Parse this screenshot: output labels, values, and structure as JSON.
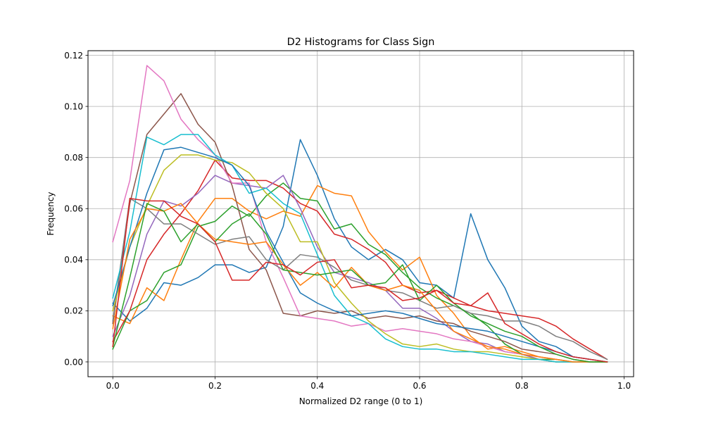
{
  "chart_data": {
    "type": "line",
    "title": "D2 Histograms for Class Sign",
    "xlabel": "Normalized D2 range (0 to 1)",
    "ylabel": "Frequency",
    "xlim": [
      -0.0485,
      1.0185
    ],
    "ylim": [
      -0.0058,
      0.1218
    ],
    "xticks": [
      0.0,
      0.2,
      0.4,
      0.6,
      0.8,
      1.0
    ],
    "xtick_labels": [
      "0.0",
      "0.2",
      "0.4",
      "0.6",
      "0.8",
      "1.0"
    ],
    "yticks": [
      0.0,
      0.02,
      0.04,
      0.06,
      0.08,
      0.1,
      0.12
    ],
    "ytick_labels": [
      "0.00",
      "0.02",
      "0.04",
      "0.06",
      "0.08",
      "0.10",
      "0.12"
    ],
    "grid": true,
    "x": [
      0.0,
      0.0333,
      0.0667,
      0.1,
      0.1333,
      0.1667,
      0.2,
      0.2333,
      0.2667,
      0.3,
      0.3333,
      0.3667,
      0.4,
      0.4333,
      0.4667,
      0.5,
      0.5333,
      0.5667,
      0.6,
      0.6333,
      0.6667,
      0.7,
      0.7333,
      0.7667,
      0.8,
      0.8333,
      0.8667,
      0.9,
      0.9333,
      0.9667
    ],
    "series": [
      {
        "color": "#1f77b4",
        "values": [
          0.023,
          0.016,
          0.021,
          0.031,
          0.03,
          0.033,
          0.038,
          0.038,
          0.035,
          0.037,
          0.053,
          0.087,
          0.073,
          0.056,
          0.045,
          0.04,
          0.044,
          0.04,
          0.031,
          0.03,
          0.025,
          0.058,
          0.04,
          0.029,
          0.014,
          0.008,
          0.006,
          0.002,
          0.001,
          0.0
        ]
      },
      {
        "color": "#ff7f0e",
        "values": [
          0.018,
          0.015,
          0.029,
          0.024,
          0.04,
          0.055,
          0.064,
          0.064,
          0.059,
          0.056,
          0.059,
          0.057,
          0.069,
          0.066,
          0.065,
          0.051,
          0.043,
          0.036,
          0.041,
          0.026,
          0.019,
          0.01,
          0.005,
          0.006,
          0.004,
          0.002,
          0.001,
          0.0,
          0.0,
          0.0
        ]
      },
      {
        "color": "#2ca02c",
        "values": [
          0.005,
          0.02,
          0.024,
          0.035,
          0.038,
          0.053,
          0.055,
          0.061,
          0.057,
          0.065,
          0.07,
          0.064,
          0.063,
          0.052,
          0.054,
          0.046,
          0.042,
          0.035,
          0.029,
          0.025,
          0.022,
          0.019,
          0.014,
          0.007,
          0.003,
          0.001,
          0.001,
          0.0,
          0.0,
          0.0
        ]
      },
      {
        "color": "#d62728",
        "values": [
          0.008,
          0.02,
          0.04,
          0.05,
          0.058,
          0.067,
          0.079,
          0.072,
          0.071,
          0.071,
          0.068,
          0.062,
          0.059,
          0.05,
          0.048,
          0.044,
          0.039,
          0.03,
          0.027,
          0.028,
          0.025,
          0.022,
          0.02,
          0.019,
          0.018,
          0.017,
          0.014,
          0.009,
          0.005,
          0.001
        ]
      },
      {
        "color": "#9467bd",
        "values": [
          0.01,
          0.026,
          0.05,
          0.063,
          0.061,
          0.066,
          0.073,
          0.07,
          0.069,
          0.068,
          0.073,
          0.06,
          0.045,
          0.035,
          0.033,
          0.031,
          0.028,
          0.021,
          0.021,
          0.017,
          0.012,
          0.008,
          0.007,
          0.004,
          0.003,
          0.001,
          0.0,
          0.0,
          0.0,
          0.0
        ]
      },
      {
        "color": "#8c564b",
        "values": [
          0.015,
          0.062,
          0.089,
          0.097,
          0.105,
          0.093,
          0.086,
          0.069,
          0.044,
          0.036,
          0.019,
          0.018,
          0.02,
          0.019,
          0.02,
          0.017,
          0.018,
          0.017,
          0.018,
          0.016,
          0.015,
          0.012,
          0.01,
          0.008,
          0.005,
          0.004,
          0.003,
          0.001,
          0.0,
          0.0
        ]
      },
      {
        "color": "#e377c2",
        "values": [
          0.047,
          0.071,
          0.116,
          0.11,
          0.095,
          0.087,
          0.081,
          0.07,
          0.07,
          0.047,
          0.033,
          0.018,
          0.017,
          0.016,
          0.014,
          0.015,
          0.012,
          0.013,
          0.012,
          0.011,
          0.009,
          0.008,
          0.006,
          0.004,
          0.003,
          0.002,
          0.001,
          0.0,
          0.0,
          0.0
        ]
      },
      {
        "color": "#7f7f7f",
        "values": [
          0.016,
          0.064,
          0.06,
          0.054,
          0.054,
          0.05,
          0.046,
          0.048,
          0.049,
          0.04,
          0.036,
          0.042,
          0.041,
          0.037,
          0.032,
          0.03,
          0.028,
          0.027,
          0.024,
          0.021,
          0.022,
          0.019,
          0.018,
          0.016,
          0.016,
          0.014,
          0.01,
          0.008,
          0.004,
          0.001
        ]
      },
      {
        "color": "#bcbd22",
        "values": [
          0.02,
          0.045,
          0.061,
          0.075,
          0.081,
          0.081,
          0.079,
          0.078,
          0.074,
          0.066,
          0.06,
          0.047,
          0.047,
          0.031,
          0.023,
          0.016,
          0.011,
          0.007,
          0.006,
          0.007,
          0.005,
          0.004,
          0.004,
          0.003,
          0.002,
          0.001,
          0.0,
          0.0,
          0.0,
          0.0
        ]
      },
      {
        "color": "#17becf",
        "values": [
          0.025,
          0.051,
          0.088,
          0.085,
          0.089,
          0.089,
          0.081,
          0.077,
          0.066,
          0.068,
          0.062,
          0.058,
          0.042,
          0.026,
          0.018,
          0.015,
          0.009,
          0.006,
          0.005,
          0.005,
          0.004,
          0.004,
          0.003,
          0.002,
          0.001,
          0.001,
          0.0,
          0.0,
          0.0,
          0.0
        ]
      },
      {
        "color": "#1f77b4",
        "values": [
          0.022,
          0.045,
          0.066,
          0.083,
          0.084,
          0.082,
          0.08,
          0.077,
          0.069,
          0.051,
          0.039,
          0.027,
          0.023,
          0.02,
          0.018,
          0.019,
          0.02,
          0.019,
          0.017,
          0.015,
          0.014,
          0.013,
          0.012,
          0.01,
          0.008,
          0.006,
          0.004,
          0.002,
          0.001,
          0.0
        ]
      },
      {
        "color": "#ff7f0e",
        "values": [
          0.013,
          0.048,
          0.06,
          0.059,
          0.062,
          0.054,
          0.048,
          0.047,
          0.046,
          0.047,
          0.038,
          0.03,
          0.035,
          0.029,
          0.037,
          0.03,
          0.028,
          0.03,
          0.028,
          0.02,
          0.012,
          0.009,
          0.006,
          0.005,
          0.003,
          0.002,
          0.001,
          0.0,
          0.0,
          0.0
        ]
      },
      {
        "color": "#2ca02c",
        "values": [
          0.006,
          0.033,
          0.062,
          0.059,
          0.047,
          0.054,
          0.047,
          0.054,
          0.058,
          0.05,
          0.036,
          0.035,
          0.034,
          0.035,
          0.036,
          0.03,
          0.031,
          0.038,
          0.024,
          0.03,
          0.023,
          0.018,
          0.015,
          0.012,
          0.01,
          0.006,
          0.003,
          0.001,
          0.0,
          0.0
        ]
      },
      {
        "color": "#d62728",
        "values": [
          0.006,
          0.064,
          0.063,
          0.063,
          0.057,
          0.054,
          0.047,
          0.032,
          0.032,
          0.039,
          0.038,
          0.034,
          0.039,
          0.04,
          0.029,
          0.03,
          0.029,
          0.024,
          0.025,
          0.028,
          0.023,
          0.022,
          0.027,
          0.015,
          0.011,
          0.007,
          0.004,
          0.002,
          0.001,
          0.0
        ]
      }
    ]
  }
}
